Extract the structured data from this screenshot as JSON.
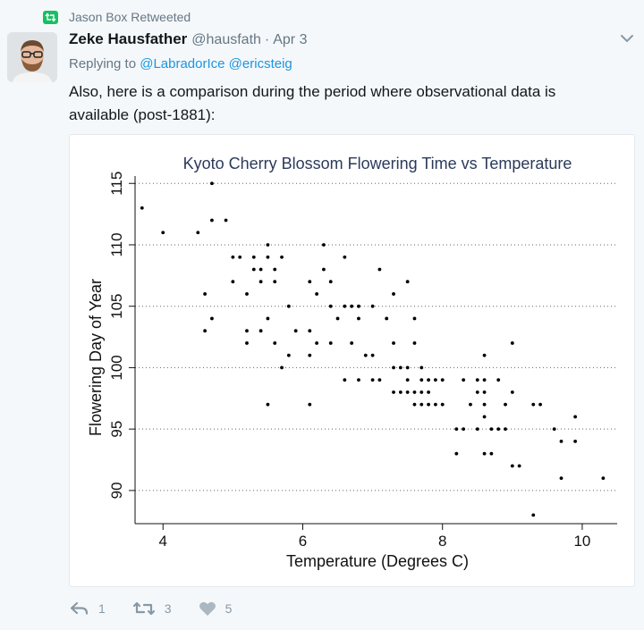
{
  "retweet": {
    "label": "Jason Box Retweeted",
    "icon": "retweet-icon"
  },
  "author": {
    "name": "Zeke Hausfather",
    "handle": "@hausfath",
    "separator": "·",
    "time": "Apr 3"
  },
  "reply": {
    "prefix": "Replying to",
    "mentions": [
      "@LabradorIce",
      "@ericsteig"
    ]
  },
  "tweet": {
    "text": "Also, here is a comparison during the period where observational data is available (post-1881):"
  },
  "actions": {
    "reply": {
      "icon": "reply-icon",
      "count": "1"
    },
    "retweet": {
      "icon": "retweet-icon",
      "count": "3"
    },
    "like": {
      "icon": "heart-icon",
      "count": "5"
    }
  },
  "colors": {
    "accent": "#1b95e0",
    "retweet_green": "#17bf63",
    "muted": "#657786",
    "chart_title": "#2b3a5a"
  },
  "chart_data": {
    "type": "scatter",
    "title": "Kyoto Cherry Blossom Flowering Time vs Temperature",
    "xlabel": "Temperature (Degrees C)",
    "ylabel": "Flowering Day of Year",
    "xlim": [
      3.6,
      10.5
    ],
    "ylim": [
      87.3,
      115.6
    ],
    "xticks": [
      4,
      6,
      8,
      10
    ],
    "yticks": [
      90,
      95,
      100,
      105,
      110,
      115
    ],
    "grid": "horizontal dotted",
    "points": [
      [
        3.7,
        113
      ],
      [
        4.0,
        111
      ],
      [
        4.5,
        111
      ],
      [
        4.7,
        115
      ],
      [
        4.7,
        112
      ],
      [
        4.9,
        112
      ],
      [
        4.6,
        106
      ],
      [
        4.6,
        103
      ],
      [
        4.7,
        104
      ],
      [
        5.0,
        109
      ],
      [
        5.1,
        109
      ],
      [
        5.0,
        107
      ],
      [
        5.2,
        106
      ],
      [
        5.2,
        103
      ],
      [
        5.2,
        102
      ],
      [
        5.3,
        109
      ],
      [
        5.3,
        108
      ],
      [
        5.4,
        108
      ],
      [
        5.4,
        107
      ],
      [
        5.4,
        103
      ],
      [
        5.5,
        110
      ],
      [
        5.5,
        109
      ],
      [
        5.5,
        104
      ],
      [
        5.5,
        97
      ],
      [
        5.6,
        108
      ],
      [
        5.6,
        107
      ],
      [
        5.6,
        102
      ],
      [
        5.7,
        109
      ],
      [
        5.7,
        100
      ],
      [
        5.8,
        105
      ],
      [
        5.8,
        101
      ],
      [
        5.9,
        103
      ],
      [
        6.1,
        107
      ],
      [
        6.1,
        103
      ],
      [
        6.1,
        101
      ],
      [
        6.1,
        97
      ],
      [
        6.2,
        106
      ],
      [
        6.2,
        102
      ],
      [
        6.3,
        110
      ],
      [
        6.3,
        108
      ],
      [
        6.4,
        107
      ],
      [
        6.4,
        105
      ],
      [
        6.4,
        102
      ],
      [
        6.5,
        104
      ],
      [
        6.6,
        109
      ],
      [
        6.6,
        105
      ],
      [
        6.6,
        99
      ],
      [
        6.7,
        105
      ],
      [
        6.7,
        102
      ],
      [
        6.8,
        105
      ],
      [
        6.8,
        104
      ],
      [
        6.8,
        99
      ],
      [
        6.9,
        101
      ],
      [
        7.0,
        105
      ],
      [
        7.0,
        101
      ],
      [
        7.0,
        99
      ],
      [
        7.1,
        108
      ],
      [
        7.1,
        99
      ],
      [
        7.2,
        104
      ],
      [
        7.3,
        106
      ],
      [
        7.3,
        102
      ],
      [
        7.3,
        100
      ],
      [
        7.3,
        98
      ],
      [
        7.4,
        100
      ],
      [
        7.4,
        98
      ],
      [
        7.5,
        107
      ],
      [
        7.5,
        100
      ],
      [
        7.5,
        99
      ],
      [
        7.5,
        98
      ],
      [
        7.6,
        104
      ],
      [
        7.6,
        102
      ],
      [
        7.6,
        98
      ],
      [
        7.6,
        97
      ],
      [
        7.7,
        100
      ],
      [
        7.7,
        99
      ],
      [
        7.7,
        98
      ],
      [
        7.7,
        97
      ],
      [
        7.8,
        99
      ],
      [
        7.8,
        98
      ],
      [
        7.8,
        97
      ],
      [
        7.9,
        99
      ],
      [
        7.9,
        97
      ],
      [
        8.0,
        99
      ],
      [
        8.0,
        97
      ],
      [
        8.2,
        95
      ],
      [
        8.2,
        93
      ],
      [
        8.3,
        99
      ],
      [
        8.3,
        95
      ],
      [
        8.4,
        97
      ],
      [
        8.5,
        99
      ],
      [
        8.5,
        98
      ],
      [
        8.5,
        95
      ],
      [
        8.6,
        101
      ],
      [
        8.6,
        99
      ],
      [
        8.6,
        98
      ],
      [
        8.6,
        97
      ],
      [
        8.6,
        96
      ],
      [
        8.6,
        93
      ],
      [
        8.7,
        93
      ],
      [
        8.7,
        95
      ],
      [
        8.8,
        99
      ],
      [
        8.8,
        95
      ],
      [
        8.9,
        97
      ],
      [
        8.9,
        95
      ],
      [
        9.0,
        102
      ],
      [
        9.0,
        98
      ],
      [
        9.0,
        92
      ],
      [
        9.1,
        92
      ],
      [
        9.3,
        97
      ],
      [
        9.3,
        88
      ],
      [
        9.4,
        97
      ],
      [
        9.6,
        95
      ],
      [
        9.7,
        94
      ],
      [
        9.7,
        91
      ],
      [
        9.9,
        96
      ],
      [
        9.9,
        94
      ],
      [
        10.3,
        91
      ]
    ]
  }
}
